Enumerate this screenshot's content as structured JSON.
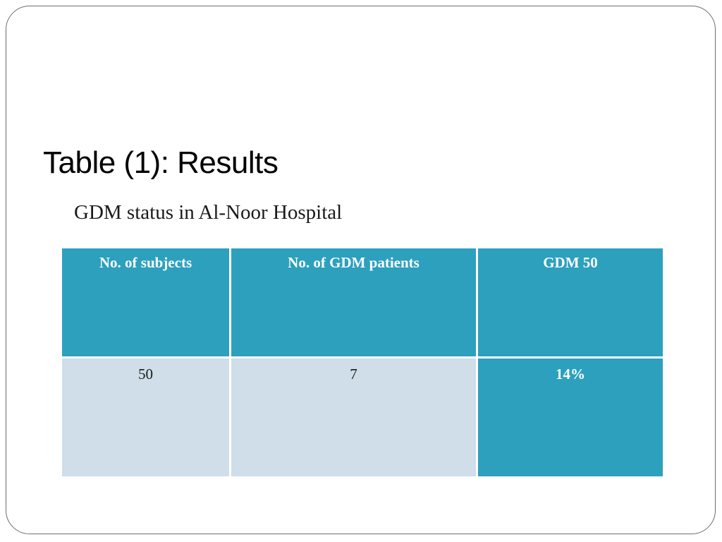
{
  "slide": {
    "title": "Table (1): Results",
    "subtitle": "GDM  status in Al-Noor Hospital"
  },
  "table": {
    "headers": [
      "No. of subjects",
      "No. of GDM patients",
      "GDM 50"
    ],
    "rows": [
      [
        "50",
        "7",
        "14%"
      ]
    ]
  },
  "colors": {
    "header_fill": "#2da0be",
    "body_fill": "#cfdee8",
    "highlight_fill": "#2da0be"
  }
}
